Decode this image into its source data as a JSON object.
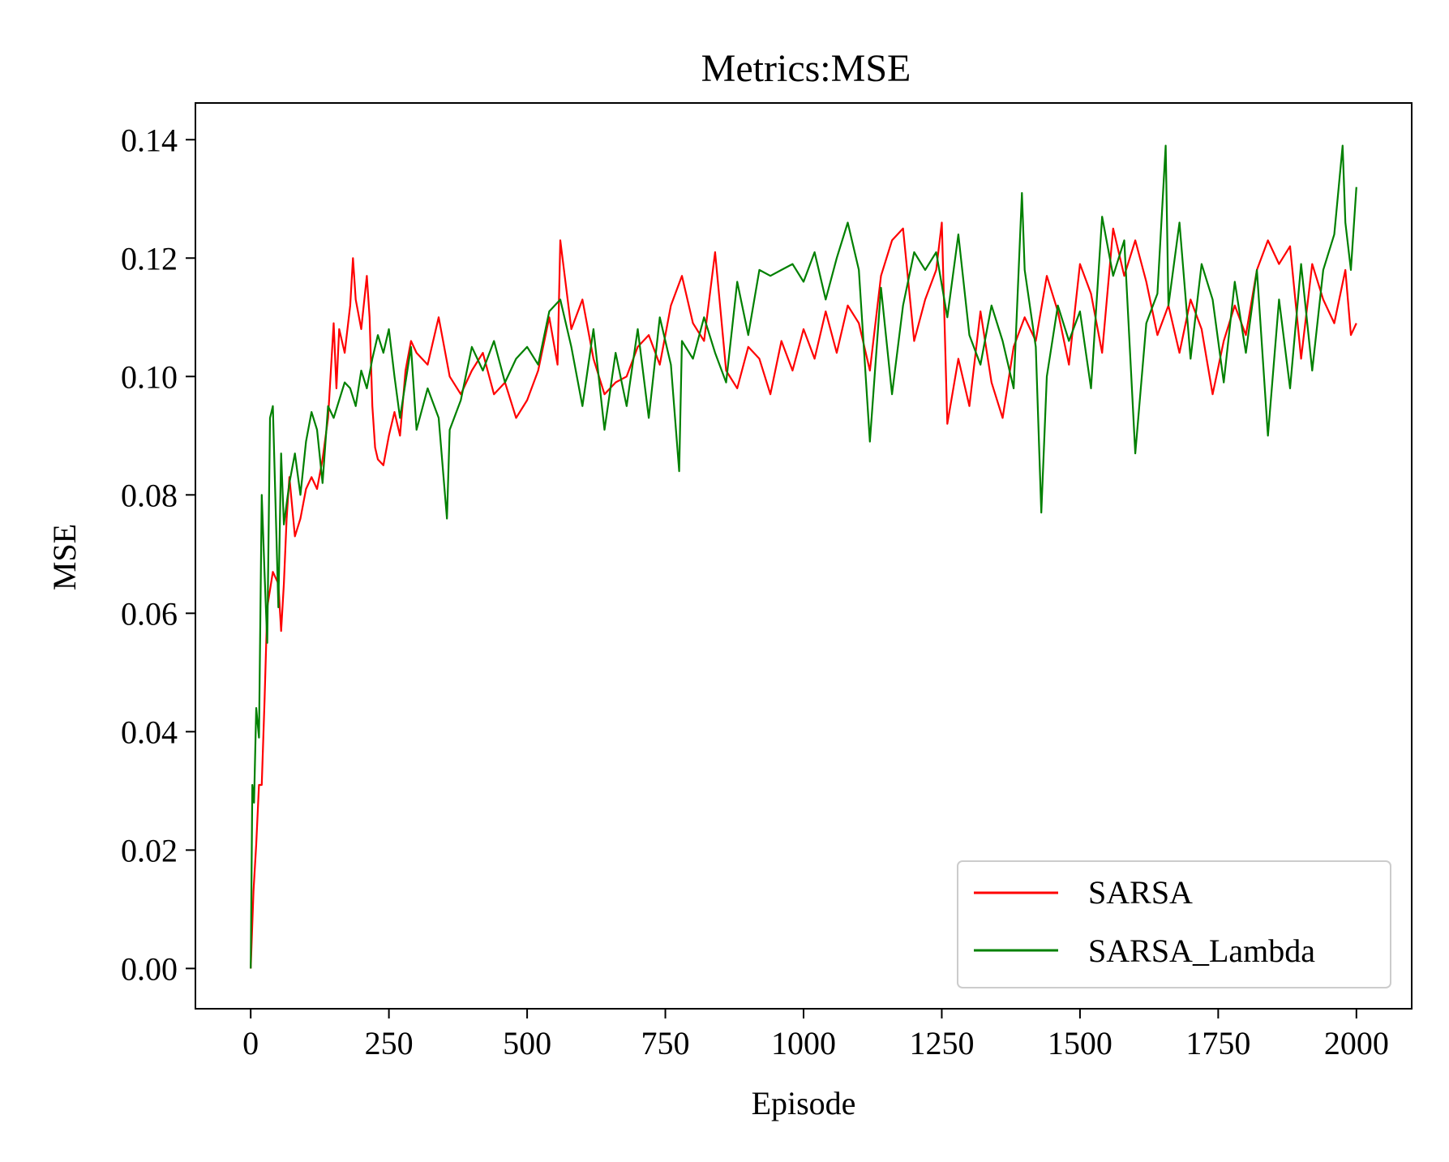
{
  "chart_data": {
    "type": "line",
    "title": "Metrics:MSE",
    "xlabel": "Episode",
    "ylabel": "MSE",
    "xlim": [
      -100,
      2100
    ],
    "ylim": [
      -0.0068,
      0.1462
    ],
    "xticks": [
      0,
      250,
      500,
      750,
      1000,
      1250,
      1500,
      1750,
      2000
    ],
    "yticks": [
      0.0,
      0.02,
      0.04,
      0.06,
      0.08,
      0.1,
      0.12,
      0.14
    ],
    "ytick_labels": [
      "0.00",
      "0.02",
      "0.04",
      "0.06",
      "0.08",
      "0.10",
      "0.12",
      "0.14"
    ],
    "grid": false,
    "legend": {
      "position": "lower-right"
    },
    "series": [
      {
        "name": "SARSA",
        "color": "#ff0000",
        "x": [
          0,
          5,
          10,
          15,
          20,
          25,
          30,
          40,
          50,
          55,
          60,
          65,
          70,
          80,
          90,
          100,
          110,
          120,
          130,
          140,
          150,
          155,
          160,
          170,
          180,
          185,
          190,
          200,
          210,
          215,
          220,
          225,
          230,
          240,
          250,
          260,
          270,
          280,
          290,
          300,
          320,
          340,
          360,
          380,
          400,
          420,
          440,
          460,
          480,
          500,
          520,
          540,
          555,
          560,
          580,
          600,
          620,
          640,
          660,
          680,
          700,
          720,
          740,
          760,
          780,
          800,
          820,
          840,
          860,
          880,
          900,
          920,
          940,
          960,
          980,
          1000,
          1020,
          1040,
          1060,
          1080,
          1100,
          1120,
          1140,
          1160,
          1180,
          1200,
          1220,
          1240,
          1250,
          1260,
          1280,
          1300,
          1320,
          1340,
          1360,
          1380,
          1400,
          1420,
          1440,
          1460,
          1480,
          1500,
          1520,
          1540,
          1560,
          1580,
          1600,
          1620,
          1640,
          1660,
          1680,
          1700,
          1720,
          1740,
          1760,
          1780,
          1800,
          1820,
          1840,
          1860,
          1880,
          1900,
          1920,
          1940,
          1960,
          1980,
          1990,
          2000
        ],
        "values": [
          0.0,
          0.013,
          0.021,
          0.031,
          0.031,
          0.045,
          0.061,
          0.067,
          0.065,
          0.057,
          0.065,
          0.076,
          0.083,
          0.073,
          0.076,
          0.081,
          0.083,
          0.081,
          0.086,
          0.093,
          0.109,
          0.098,
          0.108,
          0.104,
          0.112,
          0.12,
          0.113,
          0.108,
          0.117,
          0.11,
          0.095,
          0.088,
          0.086,
          0.085,
          0.09,
          0.094,
          0.09,
          0.101,
          0.106,
          0.104,
          0.102,
          0.11,
          0.1,
          0.097,
          0.101,
          0.104,
          0.097,
          0.099,
          0.093,
          0.096,
          0.101,
          0.11,
          0.102,
          0.123,
          0.108,
          0.113,
          0.103,
          0.097,
          0.099,
          0.1,
          0.105,
          0.107,
          0.102,
          0.112,
          0.117,
          0.109,
          0.106,
          0.121,
          0.101,
          0.098,
          0.105,
          0.103,
          0.097,
          0.106,
          0.101,
          0.108,
          0.103,
          0.111,
          0.104,
          0.112,
          0.109,
          0.101,
          0.117,
          0.123,
          0.125,
          0.106,
          0.113,
          0.118,
          0.126,
          0.092,
          0.103,
          0.095,
          0.111,
          0.099,
          0.093,
          0.105,
          0.11,
          0.106,
          0.117,
          0.111,
          0.102,
          0.119,
          0.114,
          0.104,
          0.125,
          0.117,
          0.123,
          0.116,
          0.107,
          0.112,
          0.104,
          0.113,
          0.108,
          0.097,
          0.106,
          0.112,
          0.107,
          0.118,
          0.123,
          0.119,
          0.122,
          0.103,
          0.119,
          0.113,
          0.109,
          0.118,
          0.107,
          0.109
        ]
      },
      {
        "name": "SARSA_Lambda",
        "color": "#008000",
        "x": [
          0,
          3,
          6,
          10,
          15,
          20,
          25,
          30,
          35,
          40,
          50,
          55,
          60,
          70,
          80,
          90,
          100,
          110,
          120,
          130,
          140,
          150,
          160,
          170,
          180,
          190,
          200,
          210,
          220,
          230,
          240,
          250,
          260,
          270,
          280,
          290,
          300,
          320,
          340,
          355,
          360,
          380,
          400,
          420,
          440,
          460,
          480,
          500,
          520,
          540,
          560,
          580,
          600,
          620,
          640,
          660,
          680,
          700,
          720,
          740,
          760,
          775,
          780,
          800,
          820,
          840,
          860,
          880,
          900,
          920,
          940,
          960,
          980,
          1000,
          1020,
          1040,
          1060,
          1080,
          1100,
          1120,
          1140,
          1160,
          1180,
          1200,
          1220,
          1240,
          1260,
          1280,
          1300,
          1320,
          1340,
          1360,
          1380,
          1395,
          1400,
          1420,
          1430,
          1440,
          1460,
          1480,
          1500,
          1520,
          1540,
          1560,
          1580,
          1600,
          1620,
          1640,
          1655,
          1660,
          1680,
          1700,
          1720,
          1740,
          1760,
          1780,
          1800,
          1820,
          1840,
          1860,
          1880,
          1900,
          1920,
          1940,
          1960,
          1975,
          1980,
          1990,
          2000
        ],
        "values": [
          0.0,
          0.031,
          0.028,
          0.044,
          0.039,
          0.08,
          0.067,
          0.055,
          0.093,
          0.095,
          0.061,
          0.087,
          0.075,
          0.082,
          0.087,
          0.08,
          0.089,
          0.094,
          0.091,
          0.082,
          0.095,
          0.093,
          0.096,
          0.099,
          0.098,
          0.095,
          0.101,
          0.098,
          0.103,
          0.107,
          0.104,
          0.108,
          0.1,
          0.093,
          0.099,
          0.105,
          0.091,
          0.098,
          0.093,
          0.076,
          0.091,
          0.096,
          0.105,
          0.101,
          0.106,
          0.099,
          0.103,
          0.105,
          0.102,
          0.111,
          0.113,
          0.105,
          0.095,
          0.108,
          0.091,
          0.104,
          0.095,
          0.108,
          0.093,
          0.11,
          0.102,
          0.084,
          0.106,
          0.103,
          0.11,
          0.104,
          0.099,
          0.116,
          0.107,
          0.118,
          0.117,
          0.118,
          0.119,
          0.116,
          0.121,
          0.113,
          0.12,
          0.126,
          0.118,
          0.089,
          0.115,
          0.097,
          0.112,
          0.121,
          0.118,
          0.121,
          0.11,
          0.124,
          0.107,
          0.102,
          0.112,
          0.106,
          0.098,
          0.131,
          0.118,
          0.105,
          0.077,
          0.1,
          0.112,
          0.106,
          0.111,
          0.098,
          0.127,
          0.117,
          0.123,
          0.087,
          0.109,
          0.114,
          0.139,
          0.112,
          0.126,
          0.103,
          0.119,
          0.113,
          0.099,
          0.116,
          0.104,
          0.118,
          0.09,
          0.113,
          0.098,
          0.119,
          0.101,
          0.118,
          0.124,
          0.139,
          0.126,
          0.118,
          0.132
        ]
      }
    ]
  }
}
